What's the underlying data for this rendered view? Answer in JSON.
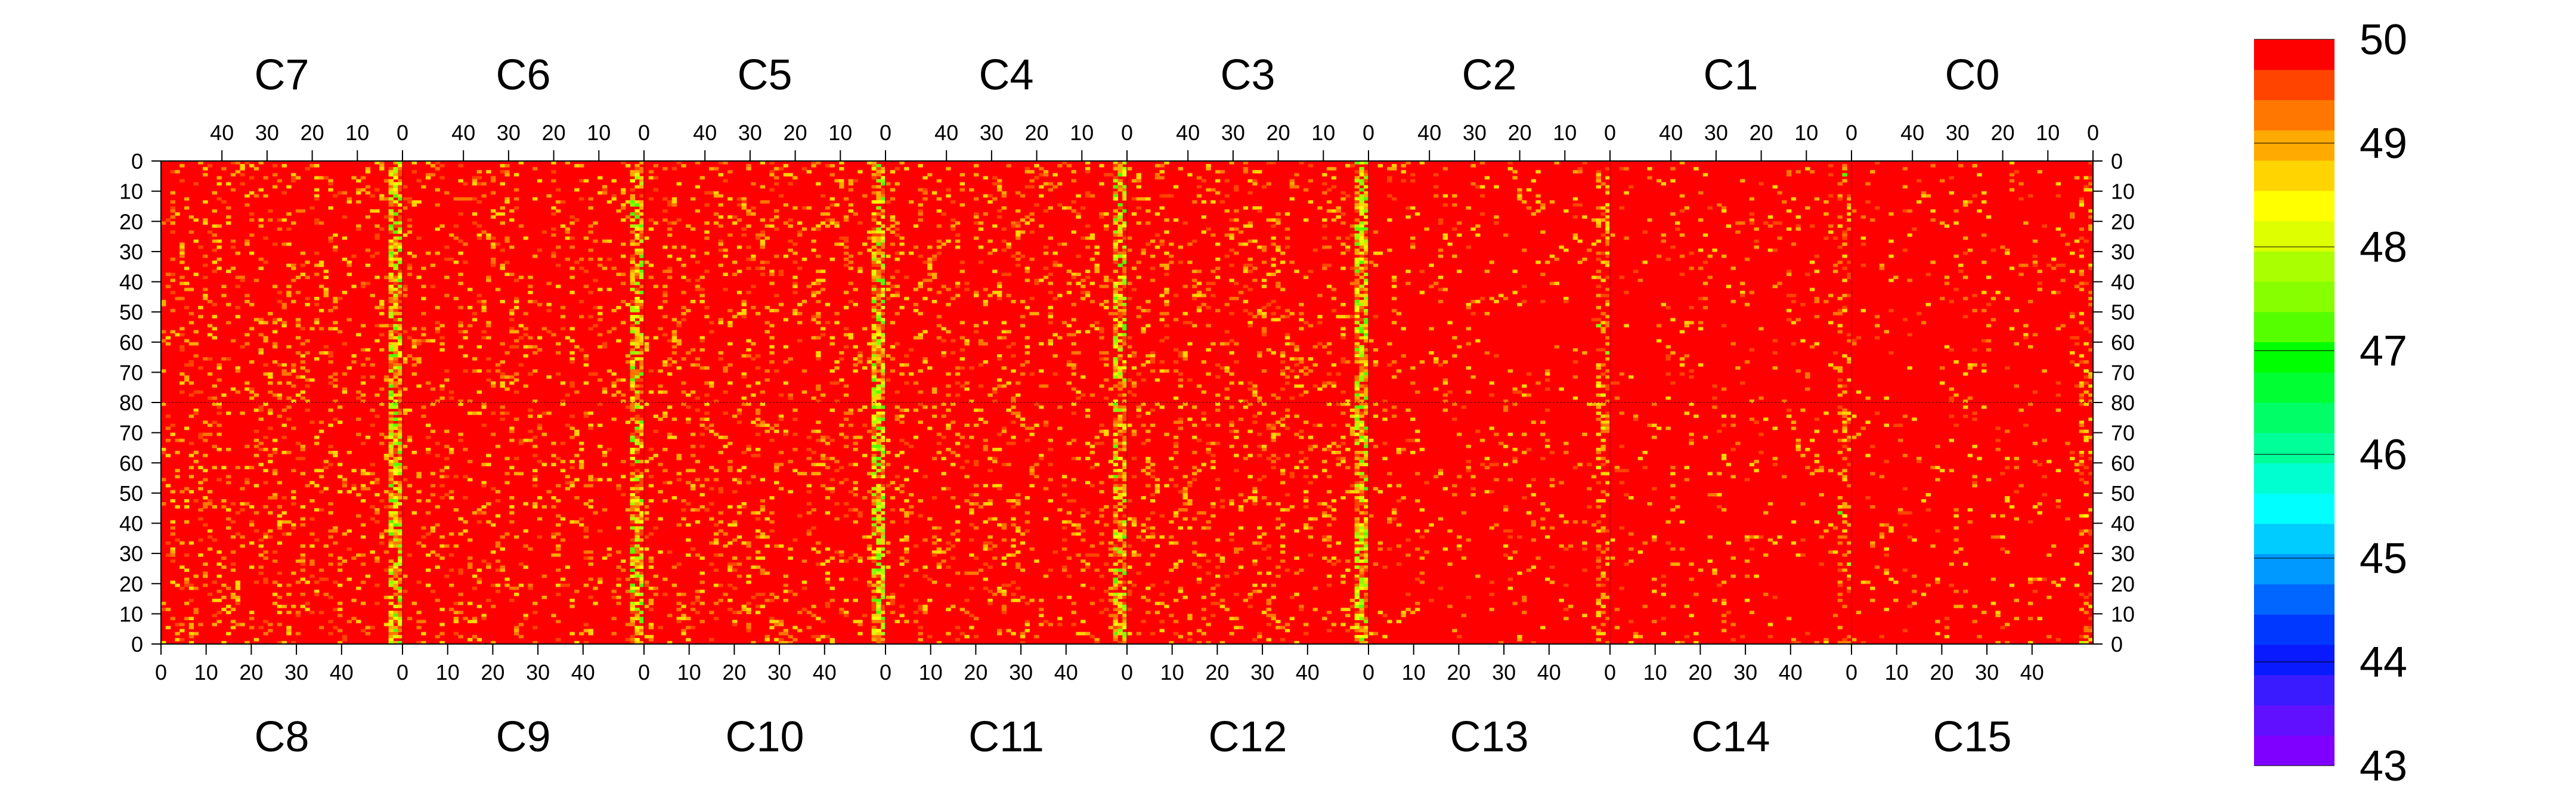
{
  "chart_data": {
    "type": "heatmap",
    "title": "",
    "top_chips": [
      "C7",
      "C6",
      "C5",
      "C4",
      "C3",
      "C2",
      "C1",
      "C0"
    ],
    "bottom_chips": [
      "C8",
      "C9",
      "C10",
      "C11",
      "C12",
      "C13",
      "C14",
      "C15"
    ],
    "x_ticks_top": [
      "40",
      "30",
      "20",
      "10",
      "0"
    ],
    "x_ticks_bottom": [
      "0",
      "10",
      "20",
      "30",
      "40"
    ],
    "y_ticks_upper": [
      "0",
      "10",
      "20",
      "30",
      "40",
      "50",
      "60",
      "70",
      "80"
    ],
    "y_ticks_lower": [
      "70",
      "60",
      "50",
      "40",
      "30",
      "20",
      "10",
      "0"
    ],
    "columns_per_chip": 52,
    "rows_per_half": 80,
    "color_scale": {
      "min": 43,
      "max": 50,
      "ticks": [
        "50",
        "49",
        "48",
        "47",
        "46",
        "45",
        "44",
        "43"
      ],
      "bands": [
        "#7f00ff",
        "#6010ff",
        "#3a1bff",
        "#0a1aff",
        "#0038ff",
        "#0066ff",
        "#0099ff",
        "#00ccff",
        "#00ffff",
        "#00ffd0",
        "#00ff99",
        "#00ff66",
        "#00ff33",
        "#00ff00",
        "#55ff00",
        "#88ff00",
        "#aaff00",
        "#ddff00",
        "#ffff00",
        "#ffd400",
        "#ffaa00",
        "#ff7700",
        "#ff4400",
        "#ff0000"
      ]
    },
    "base_value": 50,
    "hot_column_strength": [
      0.85,
      0.7,
      0.9,
      0.8,
      0.85,
      0.1,
      0.05,
      0.05
    ]
  }
}
